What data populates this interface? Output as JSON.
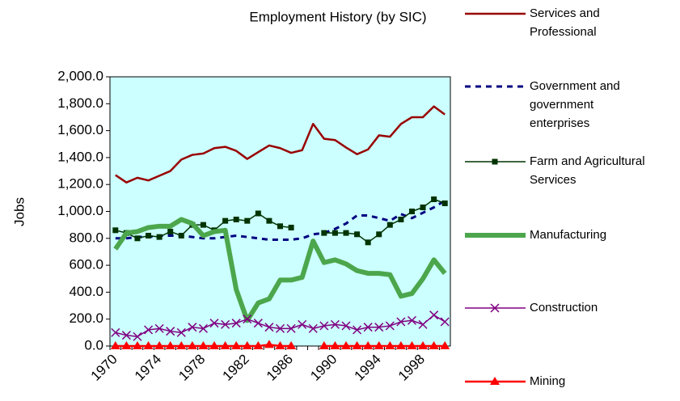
{
  "chart_data": {
    "type": "line",
    "title": "Employment History (by SIC)",
    "y_label": "Jobs",
    "categories": [
      "1970",
      null,
      null,
      null,
      "1974",
      null,
      null,
      null,
      "1978",
      null,
      null,
      null,
      "1982",
      null,
      null,
      null,
      "1986",
      null,
      null,
      null,
      "1990",
      null,
      null,
      null,
      "1994",
      null,
      null,
      null,
      "1998",
      null,
      null
    ],
    "ylim": [
      0,
      2000
    ],
    "yticks": [
      {
        "value": 0,
        "label": "0.0"
      },
      {
        "value": 200,
        "label": "200.0"
      },
      {
        "value": 400,
        "label": "400.0"
      },
      {
        "value": 600,
        "label": "600.0"
      },
      {
        "value": 800,
        "label": "800.0"
      },
      {
        "value": 1000,
        "label": "1,000.0"
      },
      {
        "value": 1200,
        "label": "1,200.0"
      },
      {
        "value": 1400,
        "label": "1,400.0"
      },
      {
        "value": 1600,
        "label": "1,600.0"
      },
      {
        "value": 1800,
        "label": "1,800.0"
      },
      {
        "value": 2000,
        "label": "2,000.0"
      }
    ],
    "background": "#ccffff",
    "series": [
      {
        "name": "Services and Professional",
        "color": "#990000",
        "width": 2.5,
        "marker": "none",
        "values": [
          1270,
          1215,
          1250,
          1230,
          1265,
          1300,
          1385,
          1420,
          1430,
          1470,
          1480,
          1450,
          1390,
          1440,
          1490,
          1470,
          1435,
          1455,
          1650,
          1540,
          1530,
          1475,
          1425,
          1460,
          1565,
          1555,
          1650,
          1700,
          1700,
          1780,
          1720
        ]
      },
      {
        "name": "Government and government enterprises",
        "color": "#000080",
        "width": 3,
        "dash": true,
        "marker": "none",
        "values": [
          800,
          800,
          810,
          810,
          820,
          820,
          820,
          810,
          800,
          800,
          810,
          820,
          810,
          800,
          790,
          790,
          790,
          800,
          830,
          840,
          870,
          910,
          970,
          970,
          950,
          930,
          980,
          950,
          990,
          1030,
          1080
        ]
      },
      {
        "name": "Farm and Agricultural Services",
        "color": "#003300",
        "width": 1.5,
        "marker": "square",
        "values": [
          860,
          840,
          800,
          820,
          810,
          850,
          820,
          900,
          900,
          860,
          930,
          940,
          930,
          985,
          930,
          890,
          880,
          null,
          null,
          840,
          840,
          840,
          830,
          770,
          830,
          900,
          940,
          1000,
          1030,
          1090,
          1060
        ]
      },
      {
        "name": "Manufacturing",
        "color": "#4ca64c",
        "width": 6,
        "marker": "none",
        "values": [
          720,
          840,
          850,
          880,
          890,
          890,
          940,
          910,
          820,
          850,
          860,
          420,
          190,
          320,
          350,
          490,
          490,
          510,
          780,
          620,
          640,
          610,
          560,
          540,
          540,
          530,
          370,
          390,
          500,
          640,
          540
        ]
      },
      {
        "name": "Construction",
        "color": "#800080",
        "width": 1.5,
        "marker": "cross",
        "values": [
          100,
          80,
          70,
          120,
          130,
          110,
          100,
          140,
          130,
          170,
          160,
          170,
          200,
          170,
          140,
          130,
          130,
          160,
          130,
          150,
          160,
          150,
          120,
          140,
          140,
          150,
          180,
          190,
          160,
          230,
          180
        ]
      },
      {
        "name": "Mining",
        "color": "#ff0000",
        "width": 2.5,
        "marker": "triangle",
        "values": [
          0,
          0,
          0,
          0,
          0,
          0,
          0,
          0,
          0,
          0,
          0,
          0,
          0,
          0,
          10,
          0,
          0,
          null,
          null,
          0,
          0,
          0,
          0,
          0,
          0,
          0,
          0,
          0,
          0,
          0,
          0
        ]
      }
    ]
  }
}
